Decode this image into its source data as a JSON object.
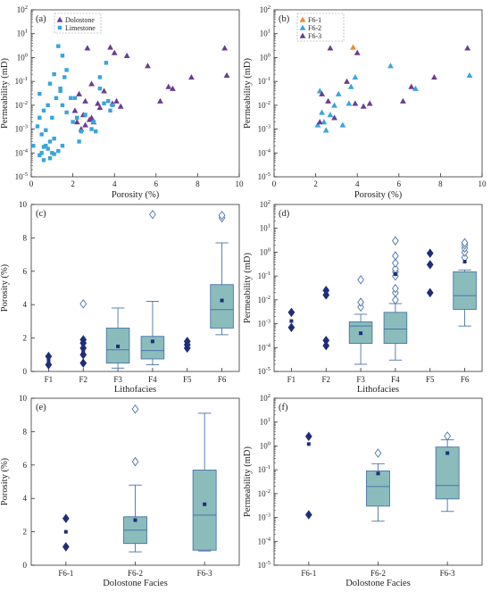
{
  "chart_data": [
    {
      "id": "a",
      "type": "scatter",
      "panel_label": "(a)",
      "xlabel": "Porosity (%)",
      "ylabel": "Permeability (mD)",
      "xlim": [
        0,
        10
      ],
      "ylog": true,
      "ylim_exp": [
        -5,
        2
      ],
      "xticks": [
        0,
        2,
        4,
        6,
        8,
        10
      ],
      "legend_position": "top-left",
      "series": [
        {
          "name": "Dolostone",
          "marker": "triangle",
          "color": "#6a3d8f",
          "points": [
            [
              2.7,
              2.5
            ],
            [
              3.8,
              2.7
            ],
            [
              4.0,
              1.6
            ],
            [
              4.6,
              1.2
            ],
            [
              5.6,
              0.45
            ],
            [
              6.6,
              0.06
            ],
            [
              6.8,
              0.05
            ],
            [
              7.7,
              0.15
            ],
            [
              9.3,
              2.5
            ],
            [
              9.4,
              0.18
            ],
            [
              2.3,
              0.03
            ],
            [
              2.6,
              0.015
            ],
            [
              2.9,
              0.08
            ],
            [
              3.2,
              0.012
            ],
            [
              3.5,
              0.04
            ],
            [
              3.9,
              0.012
            ],
            [
              2.1,
              0.006
            ],
            [
              2.5,
              0.004
            ],
            [
              2.9,
              0.003
            ],
            [
              3.3,
              0.008
            ],
            [
              2.2,
              0.002
            ],
            [
              2.6,
              0.0015
            ],
            [
              3.0,
              0.002
            ],
            [
              2.4,
              0.001
            ],
            [
              2.8,
              0.0025
            ],
            [
              4.1,
              0.015
            ],
            [
              6.2,
              0.015
            ],
            [
              4.3,
              0.009
            ]
          ]
        },
        {
          "name": "Limestone",
          "marker": "square",
          "color": "#3aa4dc",
          "points": [
            [
              0.1,
              0.0002
            ],
            [
              0.3,
              0.0013
            ],
            [
              0.4,
              0.003
            ],
            [
              0.5,
              0.0001
            ],
            [
              0.6,
              0.00018
            ],
            [
              0.4,
              8e-05
            ],
            [
              0.7,
              0.0002
            ],
            [
              0.5,
              0.0006
            ],
            [
              0.8,
              0.00015
            ],
            [
              0.9,
              0.0003
            ],
            [
              1.0,
              0.0001
            ],
            [
              1.1,
              9e-05
            ],
            [
              1.3,
              0.00012
            ],
            [
              0.6,
              5e-05
            ],
            [
              0.9,
              6e-05
            ],
            [
              1.5,
              0.0002
            ],
            [
              0.4,
              0.03
            ],
            [
              0.6,
              0.006
            ],
            [
              0.8,
              0.01
            ],
            [
              1.0,
              0.003
            ],
            [
              1.2,
              0.02
            ],
            [
              1.4,
              0.05
            ],
            [
              1.5,
              0.01
            ],
            [
              1.7,
              0.005
            ],
            [
              1.9,
              0.02
            ],
            [
              2.0,
              0.002
            ],
            [
              2.2,
              0.003
            ],
            [
              2.4,
              0.0008
            ],
            [
              2.6,
              0.004
            ],
            [
              2.9,
              0.001
            ],
            [
              3.1,
              0.0008
            ],
            [
              3.3,
              0.05
            ],
            [
              3.5,
              0.012
            ],
            [
              3.7,
              0.015
            ],
            [
              3.9,
              0.01
            ],
            [
              0.9,
              0.08
            ],
            [
              1.1,
              0.2
            ],
            [
              1.4,
              0.04
            ],
            [
              1.6,
              0.15
            ],
            [
              1.3,
              3.0
            ],
            [
              1.5,
              1.2
            ],
            [
              1.7,
              0.3
            ],
            [
              2.1,
              0.02
            ],
            [
              3.3,
              0.15
            ],
            [
              3.6,
              0.6
            ],
            [
              3.8,
              0.006
            ],
            [
              3.0,
              0.002
            ],
            [
              2.3,
              0.0003
            ],
            [
              1.1,
              0.0004
            ],
            [
              0.7,
              0.0009
            ]
          ]
        }
      ]
    },
    {
      "id": "b",
      "type": "scatter",
      "panel_label": "(b)",
      "xlabel": "Porosity (%)",
      "ylabel": "Permeability (mD)",
      "xlim": [
        0,
        10
      ],
      "ylog": true,
      "ylim_exp": [
        -5,
        2
      ],
      "xticks": [
        0,
        2,
        4,
        6,
        8,
        10
      ],
      "legend_position": "top-left",
      "series": [
        {
          "name": "F6-1",
          "marker": "triangle",
          "color": "#e98b2a",
          "points": [
            [
              3.8,
              2.7
            ]
          ]
        },
        {
          "name": "F6-2",
          "marker": "triangle",
          "color": "#3aa4dc",
          "points": [
            [
              2.2,
              0.04
            ],
            [
              2.3,
              0.005
            ],
            [
              2.4,
              0.002
            ],
            [
              2.5,
              0.0009
            ],
            [
              2.7,
              0.004
            ],
            [
              2.9,
              0.01
            ],
            [
              3.1,
              0.03
            ],
            [
              3.3,
              0.0015
            ],
            [
              3.6,
              0.012
            ],
            [
              3.7,
              0.06
            ],
            [
              3.9,
              0.15
            ],
            [
              5.6,
              0.45
            ],
            [
              6.8,
              0.05
            ],
            [
              9.4,
              0.18
            ],
            [
              2.1,
              0.0015
            ]
          ]
        },
        {
          "name": "F6-3",
          "marker": "triangle",
          "color": "#6a3d8f",
          "points": [
            [
              2.7,
              2.5
            ],
            [
              4.0,
              1.6
            ],
            [
              4.6,
              0.012
            ],
            [
              2.6,
              0.015
            ],
            [
              2.3,
              0.03
            ],
            [
              3.5,
              0.1
            ],
            [
              3.9,
              0.012
            ],
            [
              6.2,
              0.015
            ],
            [
              6.6,
              0.06
            ],
            [
              7.7,
              0.15
            ],
            [
              9.3,
              2.5
            ],
            [
              4.3,
              0.009
            ],
            [
              2.9,
              0.003
            ],
            [
              2.2,
              0.002
            ]
          ]
        }
      ]
    },
    {
      "id": "c",
      "type": "box",
      "panel_label": "(c)",
      "xlabel": "Lithofacies",
      "ylabel": "Porosity (%)",
      "ylim": [
        0,
        10
      ],
      "yticks": [
        0,
        2,
        4,
        6,
        8,
        10
      ],
      "ylog": false,
      "categories": [
        "F1",
        "F2",
        "F3",
        "F4",
        "F5",
        "F6"
      ],
      "groups": [
        {
          "points": [
            0.4,
            0.9
          ],
          "mean": 0.65
        },
        {
          "points": [
            0.5,
            1.0,
            1.4,
            1.7,
            1.9
          ],
          "mean": 1.2,
          "outliers": [
            4.05
          ]
        },
        {
          "q1": 0.5,
          "median": 1.3,
          "q3": 2.6,
          "wlo": 0.2,
          "whi": 3.8,
          "mean": 1.5
        },
        {
          "q1": 0.75,
          "median": 1.25,
          "q3": 2.1,
          "wlo": 0.4,
          "whi": 4.2,
          "mean": 1.8,
          "outliers": [
            9.4
          ]
        },
        {
          "points": [
            1.4,
            1.6,
            1.8
          ],
          "mean": 1.6
        },
        {
          "q1": 2.6,
          "median": 3.7,
          "q3": 5.2,
          "wlo": 2.2,
          "whi": 7.7,
          "mean": 4.25,
          "outliers": [
            9.2,
            9.35
          ]
        }
      ]
    },
    {
      "id": "d",
      "type": "box",
      "panel_label": "(d)",
      "xlabel": "Lithofacies",
      "ylabel": "Permeability (mD)",
      "ylog": true,
      "ylim_exp": [
        -5,
        2
      ],
      "categories": [
        "F1",
        "F2",
        "F3",
        "F4",
        "F5",
        "F6"
      ],
      "groups": [
        {
          "points": [
            0.0007,
            0.003
          ],
          "mean": 0.0013
        },
        {
          "points": [
            0.00012,
            0.0002,
            0.016,
            0.025
          ],
          "mean": 0.015
        },
        {
          "q1": 0.00015,
          "median": 0.0008,
          "q3": 0.0012,
          "wlo": 2e-05,
          "whi": 0.0025,
          "mean": 0.0004,
          "outliers": [
            0.005,
            0.008,
            0.07
          ]
        },
        {
          "q1": 0.00015,
          "median": 0.0006,
          "q3": 0.003,
          "wlo": 3e-05,
          "whi": 0.007,
          "mean": 0.12,
          "outliers": [
            0.01,
            0.02,
            0.03,
            0.1,
            0.15,
            0.2,
            0.35,
            0.7,
            3.0
          ]
        },
        {
          "points": [
            0.02,
            0.3,
            0.9
          ],
          "mean": 0.3
        },
        {
          "q1": 0.004,
          "median": 0.015,
          "q3": 0.15,
          "wlo": 0.0008,
          "whi": 0.18,
          "mean": 0.4,
          "outliers": [
            0.6,
            1.0,
            1.5,
            2.0,
            2.5
          ]
        }
      ]
    },
    {
      "id": "e",
      "type": "box",
      "panel_label": "(e)",
      "xlabel": "Dolostone Facies",
      "ylabel": "Porosity (%)",
      "ylim": [
        0,
        10
      ],
      "yticks": [
        0,
        2,
        4,
        6,
        8,
        10
      ],
      "ylog": false,
      "categories": [
        "F6-1",
        "F6-2",
        "F6-3"
      ],
      "groups": [
        {
          "points": [
            1.1,
            2.8
          ],
          "mean": 2.0
        },
        {
          "q1": 1.3,
          "median": 2.1,
          "q3": 2.9,
          "wlo": 0.8,
          "whi": 4.8,
          "mean": 2.7,
          "outliers": [
            6.2,
            9.35
          ]
        },
        {
          "q1": 0.9,
          "median": 3.0,
          "q3": 5.7,
          "wlo": 0.85,
          "whi": 9.1,
          "mean": 3.65
        }
      ]
    },
    {
      "id": "f",
      "type": "box",
      "panel_label": "(f)",
      "xlabel": "Dolostone Facies",
      "ylabel": "Permeability (mD)",
      "ylog": true,
      "ylim_exp": [
        -5,
        2
      ],
      "categories": [
        "F6-1",
        "F6-2",
        "F6-3"
      ],
      "groups": [
        {
          "points": [
            0.0013,
            2.5
          ],
          "mean": 1.2
        },
        {
          "q1": 0.003,
          "median": 0.02,
          "q3": 0.09,
          "wlo": 0.0007,
          "whi": 0.18,
          "mean": 0.07,
          "outliers": [
            0.5
          ]
        },
        {
          "q1": 0.006,
          "median": 0.022,
          "q3": 0.9,
          "wlo": 0.0018,
          "whi": 1.8,
          "mean": 0.5,
          "outliers": [
            2.6
          ]
        }
      ]
    }
  ],
  "colors": {
    "box_fill": "#8bbcbc",
    "box_edge": "#4a74a8",
    "marker": "#1f2d7a"
  }
}
